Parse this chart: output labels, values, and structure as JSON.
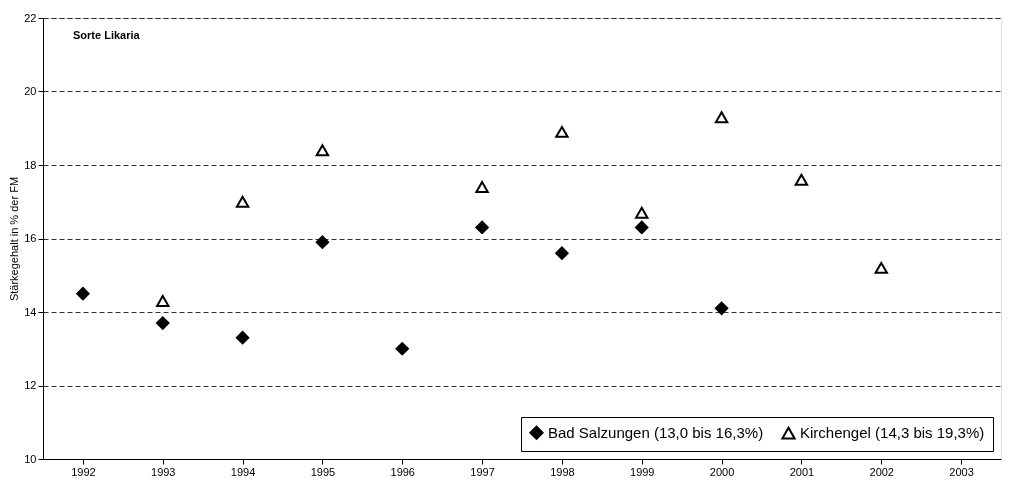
{
  "chart_data": {
    "type": "scatter",
    "title": "Sorte Likaria",
    "ylabel": "Stärkegehalt in % der FM",
    "categories": [
      "1992",
      "1993",
      "1994",
      "1995",
      "1996",
      "1997",
      "1998",
      "1999",
      "2000",
      "2001",
      "2002",
      "2003"
    ],
    "series": [
      {
        "name": "Bad Salzungen (13,0 bis 16,3%)",
        "color": "#000000",
        "marker": "diamond",
        "values": [
          14.5,
          13.7,
          13.3,
          15.9,
          13.0,
          16.3,
          15.6,
          16.3,
          14.1,
          null,
          null,
          null
        ]
      },
      {
        "name": "Kirchengel (14,3 bis 19,3%)",
        "color": "#000000",
        "marker": "triangle",
        "values": [
          null,
          14.3,
          17.0,
          18.4,
          null,
          17.4,
          18.9,
          16.7,
          19.3,
          17.6,
          15.2,
          null
        ]
      }
    ],
    "ylim": [
      10,
      22
    ],
    "yticks": [
      10,
      12,
      14,
      16,
      18,
      20,
      22
    ],
    "grid": "y",
    "legend": "bottom right"
  }
}
